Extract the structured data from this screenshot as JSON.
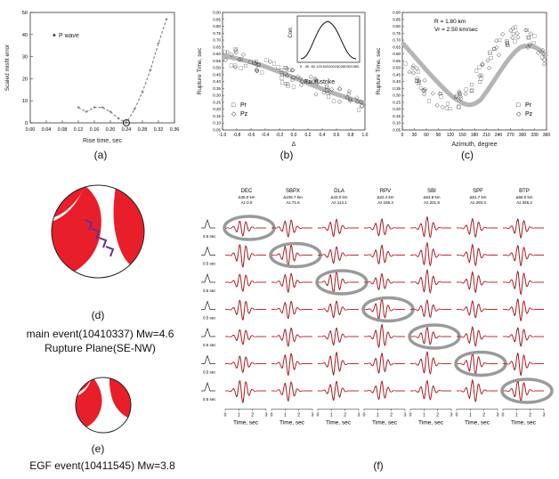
{
  "panel_a": {
    "caption": "(a)",
    "ylabel": "Scaled misfit error",
    "xlabel": "Rise time, sec",
    "legend": "P wave",
    "xticks": [
      "0.00",
      "0.04",
      "0.08",
      "0.12",
      "0.16",
      "0.20",
      "0.24",
      "0.28",
      "0.32",
      "0.36"
    ],
    "yticks": [
      "0",
      "10",
      "20",
      "30",
      "40",
      "50"
    ],
    "points": [
      [
        0.12,
        7
      ],
      [
        0.14,
        5
      ],
      [
        0.16,
        7
      ],
      [
        0.18,
        7
      ],
      [
        0.2,
        5
      ],
      [
        0.22,
        2
      ],
      [
        0.24,
        0
      ],
      [
        0.26,
        6
      ],
      [
        0.28,
        14
      ],
      [
        0.3,
        24
      ],
      [
        0.32,
        36
      ],
      [
        0.34,
        47
      ]
    ],
    "best": [
      0.24,
      0
    ]
  },
  "panel_b": {
    "caption": "(b)",
    "ylabel": "Rupture Time, sec",
    "xlabel": "Δ",
    "xticks": [
      "-1.0",
      "-0.8",
      "-0.6",
      "-0.4",
      "-0.2",
      "0.0",
      "0.2",
      "0.4",
      "0.6",
      "0.8",
      "1.0"
    ],
    "yticks": [
      "0.05",
      "0.10",
      "0.15",
      "0.20",
      "0.25",
      "0.30",
      "0.35",
      "0.40",
      "0.45",
      "0.50",
      "0.55",
      "0.60",
      "0.65",
      "0.70",
      "0.75",
      "0.80",
      "0.85",
      "0.90"
    ],
    "annotation": "Fault strike",
    "legend": [
      "Pr",
      "Pz"
    ],
    "inset_ylabel": "Corr.",
    "inset_xticks": [
      "0",
      "40",
      "80",
      "120",
      "160",
      "200",
      "240",
      "280",
      "320",
      "360"
    ]
  },
  "panel_c": {
    "caption": "(c)",
    "ylabel": "Rupture Time, sec",
    "xlabel": "Azimuth, degree",
    "xticks": [
      "0",
      "30",
      "60",
      "90",
      "120",
      "150",
      "180",
      "210",
      "240",
      "270",
      "300",
      "330",
      "360"
    ],
    "yticks": [
      "0.05",
      "0.10",
      "0.15",
      "0.20",
      "0.25",
      "0.30",
      "0.35",
      "0.40",
      "0.45",
      "0.50",
      "0.55",
      "0.60",
      "0.65",
      "0.70",
      "0.75",
      "0.80",
      "0.85",
      "0.90"
    ],
    "text1": "R = 1.80 km",
    "text2": "Vr = 2.50 km/sec",
    "legend": [
      "Pr",
      "Pz"
    ]
  },
  "panel_d": {
    "caption": "(d)",
    "line1": "main event(10410337) Mw=4.6",
    "line2": "Rupture Plane(SE-NW)"
  },
  "panel_e": {
    "caption": "(e)",
    "line1": "EGF event(10411545) Mw=3.8"
  },
  "panel_f": {
    "caption": "(f)",
    "stations": [
      {
        "name": "DEC",
        "l1": "Δ35.0 km",
        "l2": "Az.0.0"
      },
      {
        "name": "SBPX",
        "l1": "Δ106.7 km",
        "l2": "Az.71.6"
      },
      {
        "name": "DLA",
        "l1": "Δ43.0 km",
        "l2": "Az.114.1"
      },
      {
        "name": "RPV",
        "l1": "Δ22.4 km",
        "l2": "Az.165.4"
      },
      {
        "name": "SBI",
        "l1": "Δ53.8 km",
        "l2": "Az.201.9"
      },
      {
        "name": "SPF",
        "l1": "Δ51.7 km",
        "l2": "Az.293.3"
      },
      {
        "name": "BTP",
        "l1": "Δ65.0 km",
        "l2": "Az.345.2"
      }
    ],
    "row_label": "0.5 sec",
    "time_ticks": [
      "0",
      "1",
      "2",
      "3"
    ],
    "time_label": "Time, sec"
  },
  "colors": {
    "red": "#e81f2a",
    "gray": "#9a9a9a",
    "purple": "#6a2c91"
  }
}
